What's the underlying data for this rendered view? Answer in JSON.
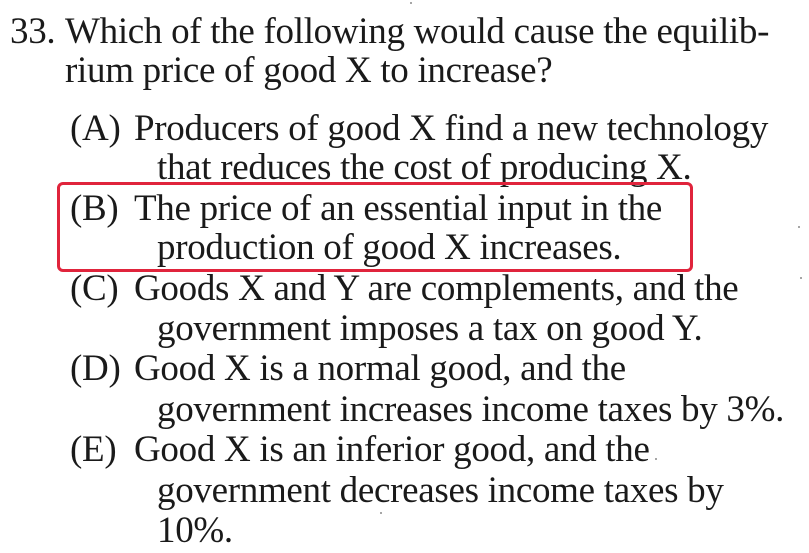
{
  "question": {
    "number": "33.",
    "stem": [
      "Which of the following would cause the equilib-",
      "rium price of good X to increase?"
    ],
    "options": [
      {
        "letter": "(A)",
        "lines": [
          "Producers of good X find a new technology",
          "that reduces the cost of producing X."
        ]
      },
      {
        "letter": "(B)",
        "lines": [
          "The price of an essential input in the",
          "production of good X increases."
        ],
        "highlighted": true
      },
      {
        "letter": "(C)",
        "lines": [
          "Goods X and Y are complements, and the",
          "government imposes a tax on good Y."
        ]
      },
      {
        "letter": "(D)",
        "lines": [
          "Good X is a normal good, and the",
          "government increases income taxes by 3%."
        ]
      },
      {
        "letter": "(E)",
        "lines": [
          "Good X is an inferior good, and the",
          "government decreases income taxes by",
          "10%."
        ]
      }
    ]
  },
  "colors": {
    "text": "#1a1a1a",
    "highlight_border": "#e0243c",
    "background": "#ffffff"
  }
}
